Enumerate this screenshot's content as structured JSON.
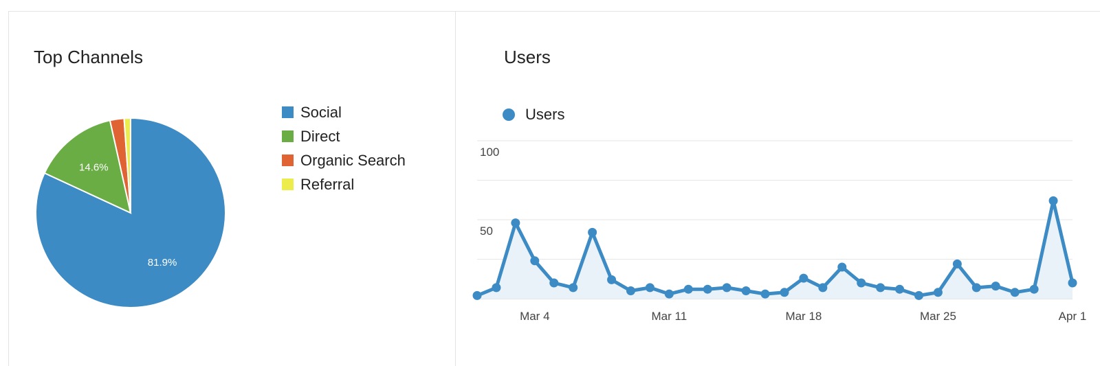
{
  "chart_data": [
    {
      "type": "pie",
      "title": "Top Channels",
      "legend_position": "right",
      "slices": [
        {
          "label": "Social",
          "value": 81.9,
          "value_label": "81.9%",
          "color": "#3d8bc4"
        },
        {
          "label": "Direct",
          "value": 14.6,
          "value_label": "14.6%",
          "color": "#6aad45"
        },
        {
          "label": "Organic Search",
          "value": 2.4,
          "value_label": "",
          "color": "#e06433"
        },
        {
          "label": "Referral",
          "value": 1.1,
          "value_label": "",
          "color": "#ecec4c"
        }
      ]
    },
    {
      "type": "line",
      "title": "Users",
      "legend_position": "top-left",
      "grid": true,
      "ylim": [
        0,
        100
      ],
      "y_ticks": [
        "100",
        "50"
      ],
      "x_ticks": [
        "Mar 4",
        "Mar 11",
        "Mar 18",
        "Mar 25",
        "Apr 1"
      ],
      "x": [
        "Mar 1",
        "Mar 2",
        "Mar 3",
        "Mar 4",
        "Mar 5",
        "Mar 6",
        "Mar 7",
        "Mar 8",
        "Mar 9",
        "Mar 10",
        "Mar 11",
        "Mar 12",
        "Mar 13",
        "Mar 14",
        "Mar 15",
        "Mar 16",
        "Mar 17",
        "Mar 18",
        "Mar 19",
        "Mar 20",
        "Mar 21",
        "Mar 22",
        "Mar 23",
        "Mar 24",
        "Mar 25",
        "Mar 26",
        "Mar 27",
        "Mar 28",
        "Mar 29",
        "Mar 30",
        "Mar 31",
        "Apr 1"
      ],
      "series": [
        {
          "name": "Users",
          "color": "#3d8bc4",
          "values": [
            2,
            7,
            48,
            24,
            10,
            7,
            42,
            12,
            5,
            7,
            3,
            6,
            6,
            7,
            5,
            3,
            4,
            13,
            7,
            20,
            10,
            7,
            6,
            2,
            4,
            22,
            7,
            8,
            4,
            6,
            62,
            10
          ]
        }
      ]
    }
  ]
}
